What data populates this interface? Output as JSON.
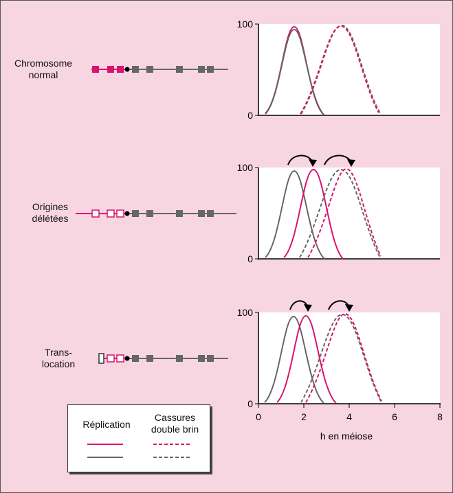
{
  "rows": [
    {
      "label_lines": [
        "Chromosome",
        "normal"
      ],
      "y_max_label": "100",
      "y_min_label": "0"
    },
    {
      "label_lines": [
        "Origines",
        "délétées"
      ],
      "y_max_label": "100",
      "y_min_label": "0"
    },
    {
      "label_lines": [
        "Trans-",
        "location"
      ],
      "y_max_label": "100",
      "y_min_label": "0"
    }
  ],
  "axis": {
    "xlabel": "h en méiose",
    "ticks": [
      "0",
      "2",
      "4",
      "6",
      "8"
    ]
  },
  "legend": {
    "replication": "Réplication",
    "dsb_line1": "Cassures",
    "dsb_line2": "double brin"
  },
  "colors": {
    "magenta": "#d9136e",
    "gray": "#666666",
    "background": "#f7d6e2",
    "marker_dark": "#666666",
    "centromere": "#000000"
  }
}
